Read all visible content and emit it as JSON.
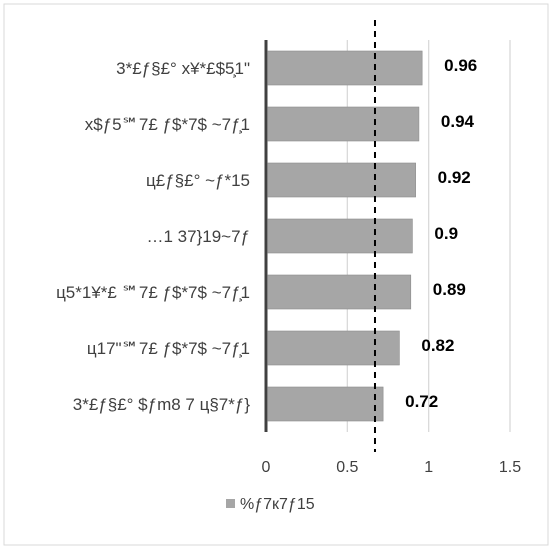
{
  "chart_data": {
    "type": "bar",
    "orientation": "horizontal",
    "title": "",
    "xlabel": "",
    "ylabel": "",
    "categories": [
      "3*£ƒ§£° x¥*£$5̧1\"",
      "x$ƒ5℠7£ ƒ$*7$ ~7ƒ̧1",
      "ц£ƒ§£° ~ƒ*15",
      "…1 37}19~7ƒ",
      "ц5*1¥*£ ℠7£ ƒ$*7$ ~7ƒ̧1",
      "ц17\"℠7£ ƒ$*7$ ~7ƒ̧1",
      "3*£ƒ§£° $ƒm8 7 ц§7*ƒ}"
    ],
    "series": [
      {
        "name": "%ƒ7к7ƒ15",
        "values": [
          0.96,
          0.94,
          0.92,
          0.9,
          0.89,
          0.82,
          0.72
        ]
      }
    ],
    "data_labels": [
      "0.96",
      "0.94",
      "0.92",
      "0.9",
      "0.89",
      "0.82",
      "0.72"
    ],
    "xlim": [
      0,
      1.5
    ],
    "x_ticks": [
      {
        "value": 0,
        "label": "0"
      },
      {
        "value": 0.5,
        "label": "0.5"
      },
      {
        "value": 1,
        "label": "1"
      },
      {
        "value": 1.5,
        "label": "1.5"
      }
    ],
    "reference_line": {
      "value": 0.67,
      "style": "dashed"
    },
    "grid": true,
    "legend_position": "bottom",
    "colors": {
      "bar": "#a6a6a6",
      "bar_stroke": "#8c8c8c",
      "grid": "#d9d9d9",
      "axis": "#404040",
      "reference_line": "#000000",
      "chart_border": "#d9d9d9"
    }
  }
}
